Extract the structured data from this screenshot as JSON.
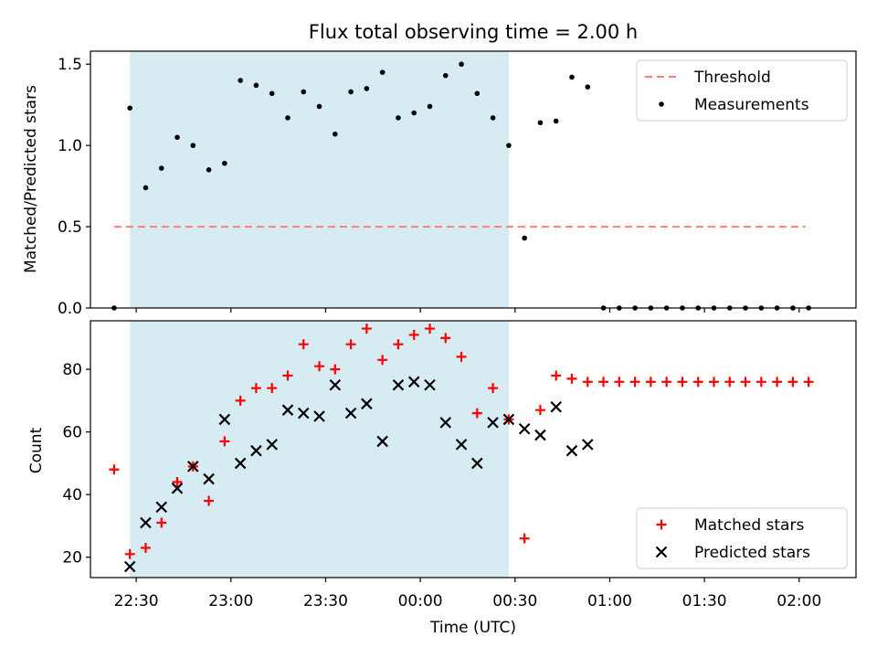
{
  "chart_data": {
    "title": "Flux total observing time = 2.00 h",
    "x_unit": "minutes after 22:30 UTC (x axis shown as clock time)",
    "x_ticks": [
      {
        "t": 0,
        "label": "22:30"
      },
      {
        "t": 30,
        "label": "23:00"
      },
      {
        "t": 60,
        "label": "23:30"
      },
      {
        "t": 90,
        "label": "00:00"
      },
      {
        "t": 120,
        "label": "00:30"
      },
      {
        "t": 150,
        "label": "01:00"
      },
      {
        "t": 180,
        "label": "01:30"
      },
      {
        "t": 210,
        "label": "02:00"
      }
    ],
    "xlabel": "Time (UTC)",
    "xlim": [
      -14.5,
      228
    ],
    "shaded_region": {
      "x": [
        -2,
        118
      ],
      "color": "#add8e6"
    },
    "panels": [
      {
        "type": "scatter",
        "ylabel": "Matched/Predicted stars",
        "ylim": [
          0,
          1.58
        ],
        "yticks": [
          "0.0",
          "0.5",
          "1.0",
          "1.5"
        ],
        "ytick_values": [
          0,
          0.5,
          1.0,
          1.5
        ],
        "legend": {
          "placement": "top-right",
          "entries": [
            "Threshold",
            "Measurements"
          ]
        },
        "threshold": {
          "name": "Threshold",
          "y": 0.5,
          "x": [
            -7,
            212
          ],
          "color": "#ff7f7f"
        },
        "series": [
          {
            "name": "Measurements",
            "color": "#000000",
            "x": [
              -7,
              -2,
              3,
              8,
              13,
              18,
              23,
              28,
              33,
              38,
              43,
              48,
              53,
              58,
              63,
              68,
              73,
              78,
              83,
              88,
              93,
              98,
              103,
              108,
              113,
              118,
              123,
              128,
              133,
              138,
              143,
              148,
              153,
              158,
              163,
              168,
              173,
              178,
              183,
              188,
              193,
              198,
              203,
              208,
              213
            ],
            "y": [
              0.0,
              1.23,
              0.74,
              0.86,
              1.05,
              1.0,
              0.85,
              0.89,
              1.4,
              1.37,
              1.32,
              1.17,
              1.33,
              1.24,
              1.07,
              1.33,
              1.35,
              1.45,
              1.17,
              1.2,
              1.24,
              1.43,
              1.5,
              1.32,
              1.17,
              1.0,
              0.43,
              1.14,
              1.15,
              1.42,
              1.36,
              0.0,
              0.0,
              0.0,
              0.0,
              0.0,
              0.0,
              0.0,
              0.0,
              0.0,
              0.0,
              0.0,
              0.0,
              0.0,
              0.0
            ]
          }
        ]
      },
      {
        "type": "scatter",
        "ylabel": "Count",
        "ylim": [
          13.5,
          95.5
        ],
        "yticks": [
          "20",
          "40",
          "60",
          "80"
        ],
        "ytick_values": [
          20,
          40,
          60,
          80
        ],
        "legend": {
          "placement": "bottom-right",
          "entries": [
            "Matched stars",
            "Predicted stars"
          ]
        },
        "series": [
          {
            "name": "Matched stars",
            "marker": "plus",
            "color": "#ff0000",
            "x": [
              -7,
              -2,
              3,
              8,
              13,
              18,
              23,
              28,
              33,
              38,
              43,
              48,
              53,
              58,
              63,
              68,
              73,
              78,
              83,
              88,
              93,
              98,
              103,
              108,
              113,
              118,
              123,
              128,
              133,
              138,
              143,
              148,
              153,
              158,
              163,
              168,
              173,
              178,
              183,
              188,
              193,
              198,
              203,
              208,
              213
            ],
            "y": [
              48,
              21,
              23,
              31,
              44,
              49,
              38,
              57,
              70,
              74,
              74,
              78,
              88,
              81,
              80,
              88,
              93,
              83,
              88,
              91,
              93,
              90,
              84,
              66,
              74,
              64,
              26,
              67,
              78,
              77,
              76,
              76,
              76,
              76,
              76,
              76,
              76,
              76,
              76,
              76,
              76,
              76,
              76,
              76,
              76
            ]
          },
          {
            "name": "Predicted stars",
            "marker": "x",
            "color": "#000000",
            "x": [
              -2,
              3,
              8,
              13,
              18,
              23,
              28,
              33,
              38,
              43,
              48,
              53,
              58,
              63,
              68,
              73,
              78,
              83,
              88,
              93,
              98,
              103,
              108,
              113,
              118,
              123,
              128,
              133,
              138,
              143
            ],
            "y": [
              17,
              31,
              36,
              42,
              49,
              45,
              64,
              50,
              54,
              56,
              67,
              66,
              65,
              75,
              66,
              69,
              57,
              75,
              76,
              75,
              63,
              56,
              50,
              63,
              64,
              61,
              59,
              68,
              54,
              56
            ]
          }
        ]
      }
    ]
  }
}
